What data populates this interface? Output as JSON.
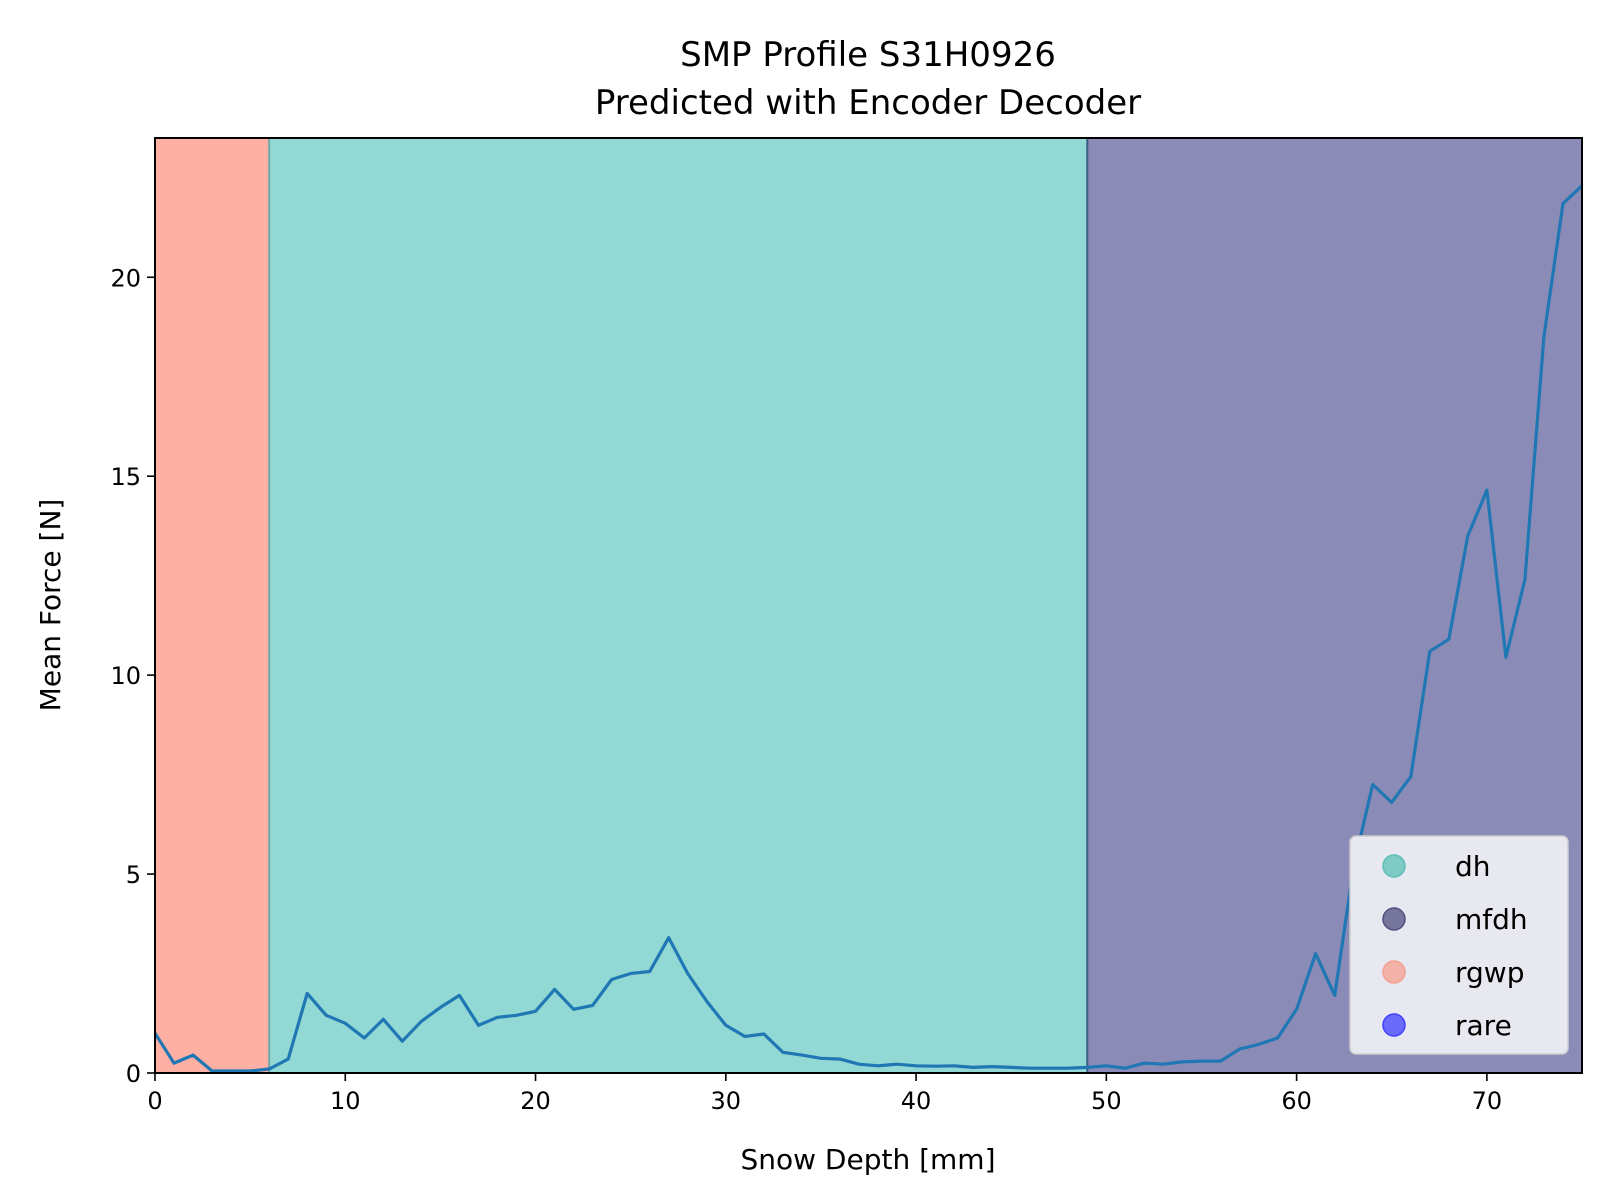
{
  "chart_data": {
    "type": "line",
    "title": "SMP Profile S31H0926",
    "subtitle": "Predicted with Encoder Decoder",
    "xlabel": "Snow Depth [mm]",
    "ylabel": "Mean Force [N]",
    "xlim": [
      0,
      75
    ],
    "ylim": [
      0,
      23.5
    ],
    "xticks": [
      0,
      10,
      20,
      30,
      40,
      50,
      60,
      70
    ],
    "yticks": [
      0,
      5,
      10,
      15,
      20
    ],
    "grid": false,
    "legend_position": "lower-right",
    "regions": [
      {
        "label": "rgwp",
        "x_start": 0,
        "x_end": 6,
        "color": "#fdb0a3"
      },
      {
        "label": "dh",
        "x_start": 6,
        "x_end": 49,
        "color": "#92d8d4"
      },
      {
        "label": "mfdh",
        "x_start": 49,
        "x_end": 75,
        "color": "#8b8bb8"
      }
    ],
    "series": [
      {
        "color": "#1f77b4",
        "x": [
          0,
          1,
          2,
          3,
          4,
          5,
          6,
          7,
          8,
          9,
          10,
          11,
          12,
          13,
          14,
          15,
          16,
          17,
          18,
          19,
          20,
          21,
          22,
          23,
          24,
          25,
          26,
          27,
          28,
          29,
          30,
          31,
          32,
          33,
          34,
          35,
          36,
          37,
          38,
          39,
          40,
          41,
          42,
          43,
          44,
          45,
          46,
          47,
          48,
          49,
          50,
          51,
          52,
          53,
          54,
          55,
          56,
          57,
          58,
          59,
          60,
          61,
          62,
          63,
          64,
          65,
          66,
          67,
          68,
          69,
          70,
          71,
          72,
          73,
          74,
          75
        ],
        "y": [
          1.0,
          0.25,
          0.45,
          0.05,
          0.05,
          0.05,
          0.1,
          0.35,
          2.0,
          1.45,
          1.25,
          0.88,
          1.35,
          0.8,
          1.3,
          1.65,
          1.95,
          1.2,
          1.4,
          1.45,
          1.55,
          2.1,
          1.6,
          1.7,
          2.35,
          2.5,
          2.55,
          3.4,
          2.5,
          1.8,
          1.2,
          0.92,
          0.98,
          0.52,
          0.45,
          0.37,
          0.35,
          0.22,
          0.18,
          0.22,
          0.18,
          0.17,
          0.18,
          0.14,
          0.16,
          0.14,
          0.12,
          0.12,
          0.12,
          0.14,
          0.18,
          0.12,
          0.25,
          0.22,
          0.28,
          0.3,
          0.3,
          0.6,
          0.72,
          0.88,
          1.6,
          3.0,
          1.95,
          5.2,
          7.25,
          6.8,
          7.45,
          10.6,
          10.9,
          13.5,
          14.65,
          10.45,
          12.4,
          18.5,
          21.85,
          22.3
        ]
      }
    ],
    "legend": [
      {
        "label": "dh",
        "color": "#5bc0b5"
      },
      {
        "label": "mfdh",
        "color": "#505080"
      },
      {
        "label": "rgwp",
        "color": "#f5a090"
      },
      {
        "label": "rare",
        "color": "#4040ff"
      }
    ]
  }
}
